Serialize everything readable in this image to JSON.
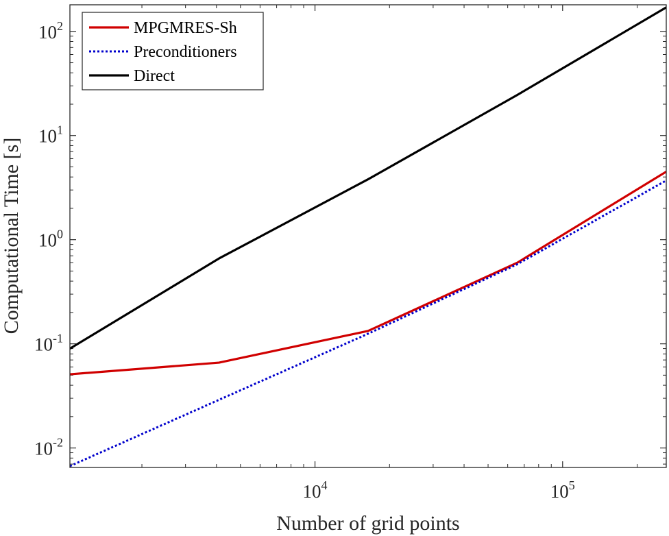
{
  "chart_data": {
    "type": "line",
    "scale": {
      "x": "log",
      "y": "log"
    },
    "xlabel": "Number of grid points",
    "ylabel": "Computational Time [s]",
    "xlim": [
      1024,
      262144
    ],
    "ylim": [
      0.0065,
      180
    ],
    "x_ticks": [
      {
        "base": "10",
        "exp": "4",
        "value": 10000
      },
      {
        "base": "10",
        "exp": "5",
        "value": 100000
      }
    ],
    "y_ticks": [
      {
        "base": "10",
        "exp": "-2",
        "value": 0.01
      },
      {
        "base": "10",
        "exp": "-1",
        "value": 0.1
      },
      {
        "base": "10",
        "exp": "0",
        "value": 1
      },
      {
        "base": "10",
        "exp": "1",
        "value": 10
      },
      {
        "base": "10",
        "exp": "2",
        "value": 100
      }
    ],
    "legend_position": "top-left",
    "series": [
      {
        "name": "MPGMRES-Sh",
        "color": "#d00000",
        "style": "solid",
        "x": [
          1024,
          4096,
          16384,
          65536,
          262144
        ],
        "y": [
          0.051,
          0.066,
          0.133,
          0.6,
          4.5
        ]
      },
      {
        "name": "Preconditioners",
        "color": "#0000cc",
        "style": "dotted",
        "x": [
          1024,
          4096,
          16384,
          65536,
          262144
        ],
        "y": [
          0.0067,
          0.029,
          0.125,
          0.58,
          3.7
        ]
      },
      {
        "name": "Direct",
        "color": "#000000",
        "style": "solid",
        "x": [
          1024,
          4096,
          16384,
          65536,
          262144
        ],
        "y": [
          0.09,
          0.66,
          3.8,
          24.5,
          170
        ]
      }
    ]
  }
}
